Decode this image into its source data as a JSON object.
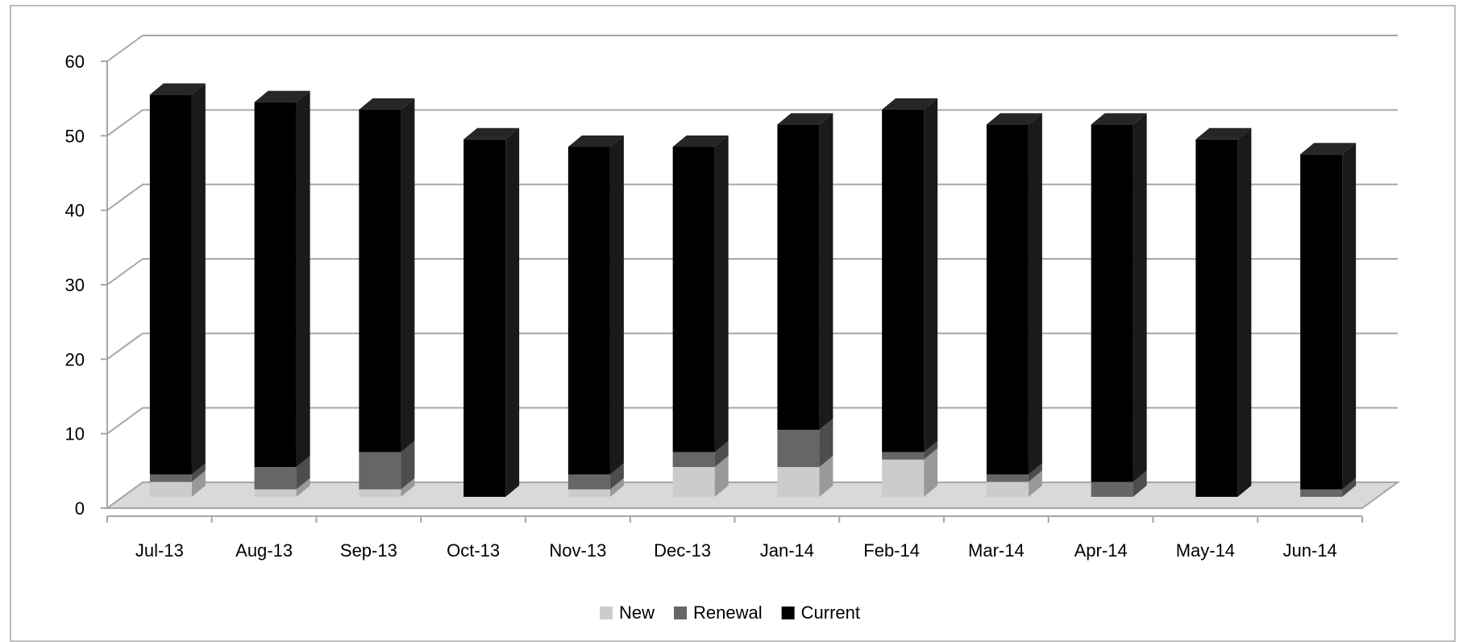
{
  "chart_data": {
    "type": "bar",
    "stacked": true,
    "three_d": true,
    "categories": [
      "Jul-13",
      "Aug-13",
      "Sep-13",
      "Oct-13",
      "Nov-13",
      "Dec-13",
      "Jan-14",
      "Feb-14",
      "Mar-14",
      "Apr-14",
      "May-14",
      "Jun-14"
    ],
    "series": [
      {
        "name": "New",
        "values": [
          2,
          1,
          1,
          0,
          1,
          4,
          4,
          5,
          2,
          0,
          0,
          0
        ]
      },
      {
        "name": "Renewal",
        "values": [
          1,
          3,
          5,
          0,
          2,
          2,
          5,
          1,
          1,
          2,
          0,
          1
        ]
      },
      {
        "name": "Current",
        "values": [
          51,
          49,
          46,
          48,
          44,
          41,
          41,
          46,
          47,
          48,
          48,
          45
        ]
      }
    ],
    "series_colors": {
      "New": "#cccccc",
      "Renewal": "#666666",
      "Current": "#000000"
    },
    "ylim": [
      0,
      60
    ],
    "yticks": [
      0,
      10,
      20,
      30,
      40,
      50,
      60
    ],
    "grid": true,
    "legend_position": "bottom"
  }
}
